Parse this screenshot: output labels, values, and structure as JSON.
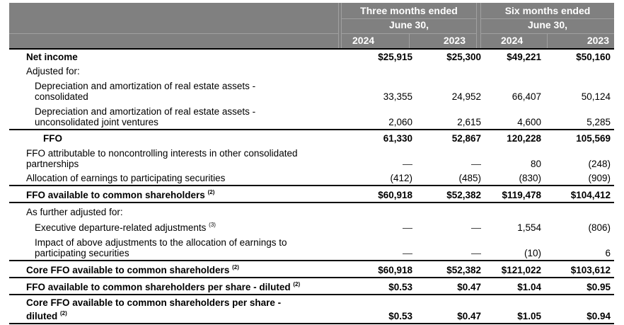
{
  "header": {
    "group1": {
      "line1": "Three months ended",
      "line2": "June 30,",
      "years": [
        "2024",
        "2023"
      ]
    },
    "group2": {
      "line1": "Six months ended",
      "line2": "June 30,",
      "years": [
        "2024",
        "2023"
      ]
    }
  },
  "rows": [
    {
      "label": "Net income",
      "values": [
        "$25,915",
        "$25,300",
        "$49,221",
        "$50,160"
      ]
    },
    {
      "label": "Adjusted for:",
      "values": [
        "",
        "",
        "",
        ""
      ]
    },
    {
      "label": "Depreciation and amortization of real estate assets -",
      "label2": "consolidated",
      "values": [
        "33,355",
        "24,952",
        "66,407",
        "50,124"
      ]
    },
    {
      "label": "Depreciation and amortization of real estate assets -",
      "label2": "unconsolidated joint ventures",
      "values": [
        "2,060",
        "2,615",
        "4,600",
        "5,285"
      ]
    },
    {
      "label": "FFO",
      "values": [
        "61,330",
        "52,867",
        "120,228",
        "105,569"
      ]
    },
    {
      "label": "FFO attributable to noncontrolling interests in other consolidated",
      "label2": "partnerships",
      "values": [
        "—",
        "—",
        "80",
        "(248)"
      ]
    },
    {
      "label": "Allocation of earnings to participating securities",
      "values": [
        "(412)",
        "(485)",
        "(830)",
        "(909)"
      ]
    },
    {
      "label": "FFO available to common shareholders",
      "note": "(2)",
      "values": [
        "$60,918",
        "$52,382",
        "$119,478",
        "$104,412"
      ]
    },
    {
      "label": "As further adjusted for:",
      "values": [
        "",
        "",
        "",
        ""
      ]
    },
    {
      "label": "Executive departure-related adjustments",
      "note": "(3)",
      "values": [
        "—",
        "—",
        "1,554",
        "(806)"
      ]
    },
    {
      "label": "Impact of above adjustments to the allocation of earnings to",
      "label2": "participating securities",
      "values": [
        "—",
        "—",
        "(10)",
        "6"
      ]
    },
    {
      "label": "Core FFO available to common shareholders",
      "note": "(2)",
      "values": [
        "$60,918",
        "$52,382",
        "$121,022",
        "$103,612"
      ]
    },
    {
      "label": "FFO available to common shareholders per share - diluted",
      "note": "(2)",
      "values": [
        "$0.53",
        "$0.47",
        "$1.04",
        "$0.95"
      ]
    },
    {
      "label": "Core FFO available to common shareholders per share -",
      "label2": "diluted",
      "note": "(2)",
      "values": [
        "$0.53",
        "$0.47",
        "$1.05",
        "$0.94"
      ]
    }
  ]
}
